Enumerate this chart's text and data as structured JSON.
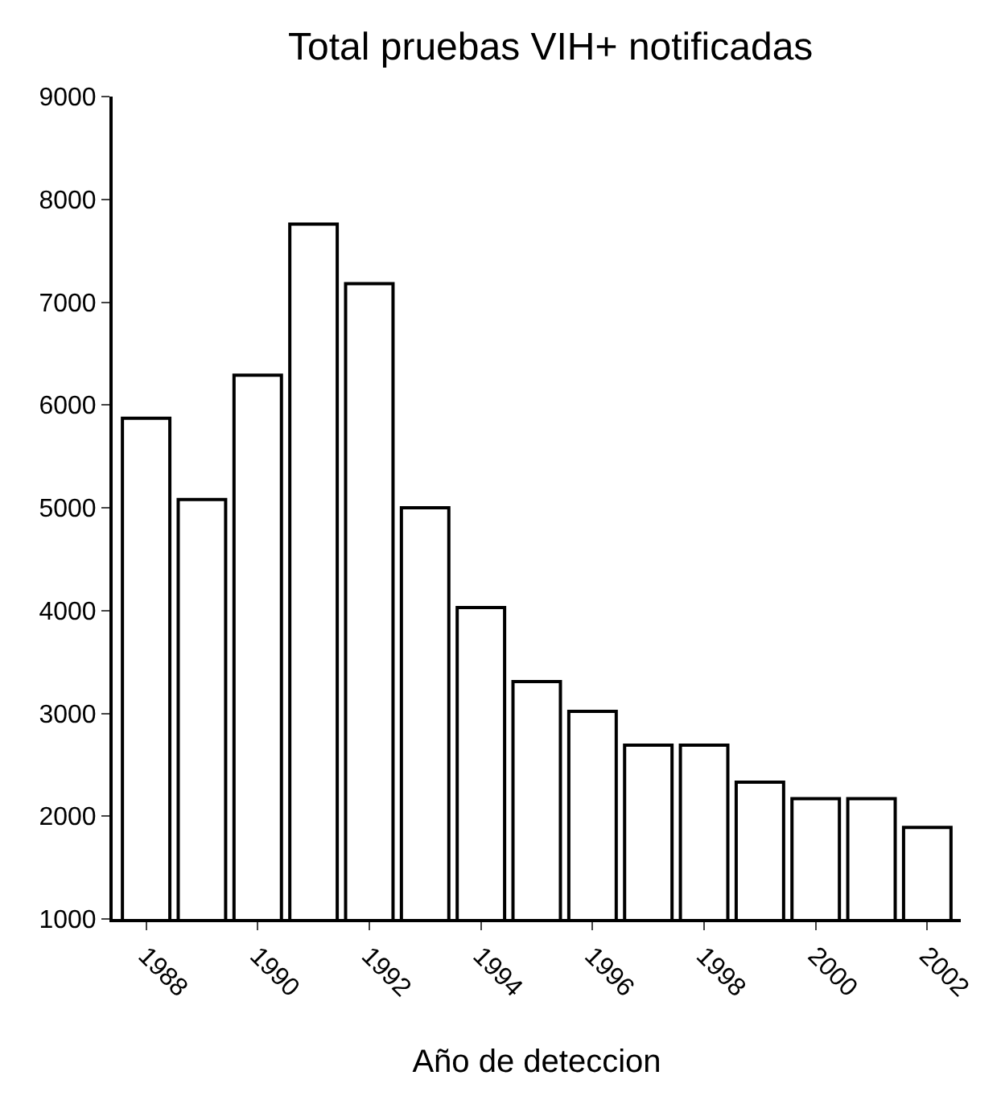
{
  "chart_data": {
    "type": "bar",
    "title": "Total pruebas VIH+ notificadas",
    "xlabel": "Año de deteccion",
    "categories": [
      "1988",
      null,
      "1990",
      null,
      "1992",
      null,
      "1994",
      null,
      "1996",
      null,
      "1998",
      null,
      "2000",
      null,
      "2002"
    ],
    "values": [
      5870,
      5080,
      6290,
      7760,
      7180,
      5000,
      4030,
      3310,
      3020,
      2690,
      2690,
      2330,
      2170,
      2170,
      1890
    ],
    "color": "#ffffff",
    "ylim": [
      1000,
      9000
    ],
    "yticks": [
      1000,
      2000,
      3000,
      4000,
      5000,
      6000,
      7000,
      8000,
      9000
    ]
  }
}
